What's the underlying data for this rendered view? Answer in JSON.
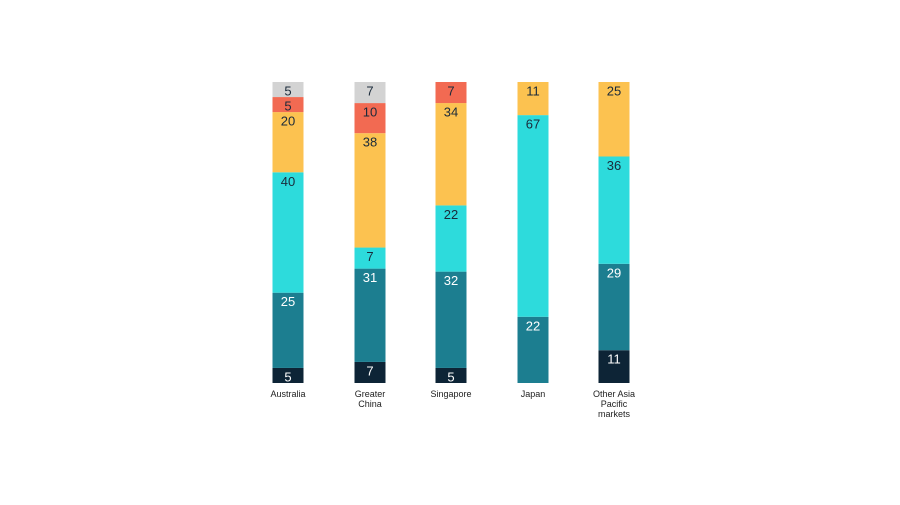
{
  "chart_data": {
    "type": "bar",
    "stacked": true,
    "normalized": true,
    "categories": [
      [
        "Australia"
      ],
      [
        "Greater",
        "China"
      ],
      [
        "Singapore"
      ],
      [
        "Japan"
      ],
      [
        "Other Asia",
        "Pacific",
        "markets"
      ]
    ],
    "series": [
      {
        "values": [
          5,
          7,
          5,
          0,
          11
        ],
        "color": "#0d2436",
        "label_color": "#ffffff"
      },
      {
        "values": [
          25,
          31,
          32,
          22,
          29
        ],
        "color": "#1c7e90",
        "label_color": "#ffffff"
      },
      {
        "values": [
          40,
          7,
          22,
          67,
          36
        ],
        "color": "#2ddbdc",
        "label_color": "#1a2a3a"
      },
      {
        "values": [
          20,
          38,
          34,
          11,
          25
        ],
        "color": "#fcc250",
        "label_color": "#1a2a3a"
      },
      {
        "values": [
          5,
          10,
          7,
          0,
          0
        ],
        "color": "#f26a52",
        "label_color": "#1a2a3a"
      },
      {
        "values": [
          5,
          7,
          0,
          0,
          0
        ],
        "color": "#d3d3d3",
        "label_color": "#1a2a3a"
      }
    ],
    "ylim": [
      0,
      100
    ],
    "grid": false,
    "legend": "none"
  }
}
